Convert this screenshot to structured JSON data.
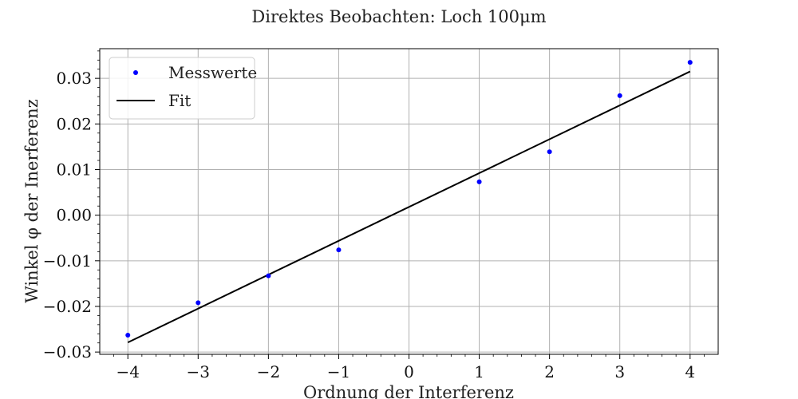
{
  "chart_data": {
    "type": "scatter",
    "title": "Direktes Beobachten: Loch 100μm",
    "xlabel": "Ordnung der Interferenz",
    "ylabel": "Winkel φ der Inerferenz",
    "xlim": [
      -4.4,
      4.4
    ],
    "ylim": [
      -0.0305,
      0.0365
    ],
    "x_ticks": [
      -4,
      -3,
      -2,
      -1,
      0,
      1,
      2,
      3,
      4
    ],
    "x_tick_labels": [
      "−4",
      "−3",
      "−2",
      "−1",
      "0",
      "1",
      "2",
      "3",
      "4"
    ],
    "y_ticks": [
      -0.03,
      -0.02,
      -0.01,
      0.0,
      0.01,
      0.02,
      0.03
    ],
    "y_tick_labels": [
      "−0.03",
      "−0.02",
      "−0.01",
      "0.00",
      "0.01",
      "0.02",
      "0.03"
    ],
    "grid": true,
    "legend_position": "top-left",
    "series": [
      {
        "name": "Messwerte",
        "kind": "points",
        "color": "#0000ff",
        "x": [
          -4,
          -3,
          -2,
          -1,
          1,
          2,
          3,
          4
        ],
        "y": [
          -0.0263,
          -0.0192,
          -0.0133,
          -0.0076,
          0.0073,
          0.0139,
          0.0262,
          0.0335
        ]
      },
      {
        "name": "Fit",
        "kind": "line",
        "color": "#000000",
        "x": [
          -4,
          4
        ],
        "y": [
          -0.0279,
          0.0315
        ]
      }
    ]
  }
}
